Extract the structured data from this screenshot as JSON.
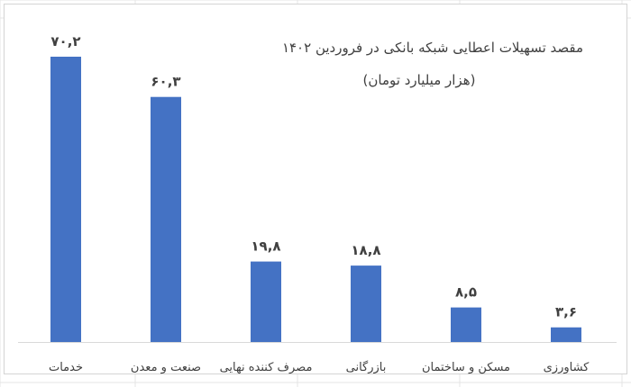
{
  "chart_data": {
    "type": "bar",
    "title": "مقصد تسهیلات اعطایی شبکه بانکی در فروردین ۱۴۰۲",
    "subtitle": "(هزار میلیارد تومان)",
    "categories": [
      "خدمات",
      "صنعت و معدن",
      "مصرف کننده نهایی",
      "بازرگانی",
      "مسکن و ساختمان",
      "کشاورزی"
    ],
    "values": [
      70.2,
      60.3,
      19.8,
      18.8,
      8.5,
      3.6
    ],
    "data_labels": [
      "۷۰,۲",
      "۶۰,۳",
      "۱۹,۸",
      "۱۸,۸",
      "۸,۵",
      "۳,۶"
    ],
    "ylim": [
      0,
      80
    ],
    "grid": false,
    "legend": "none",
    "bar_color": "#4472C4"
  }
}
